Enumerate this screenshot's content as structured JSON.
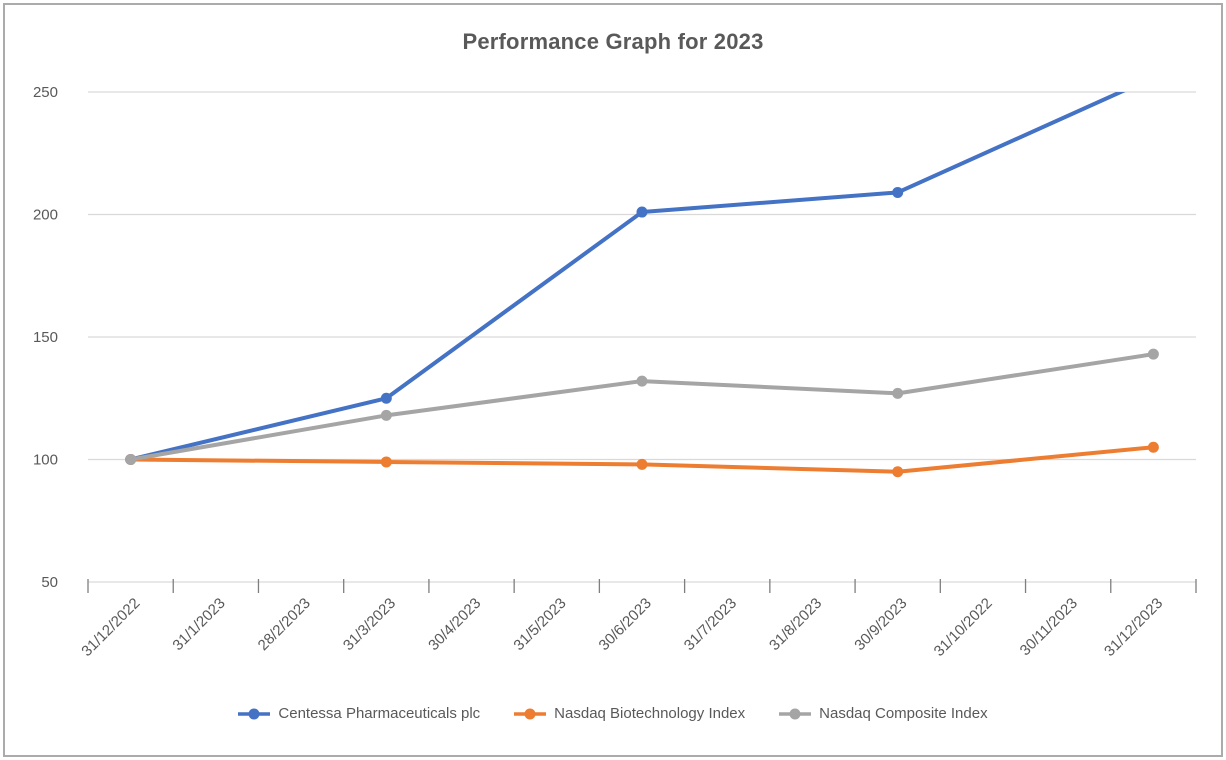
{
  "chart_data": {
    "type": "line",
    "title": "Performance Graph for 2023",
    "x": [
      "31/12/2022",
      "31/1/2023",
      "28/2/2023",
      "31/3/2023",
      "30/4/2023",
      "31/5/2023",
      "30/6/2023",
      "31/7/2023",
      "31/8/2023",
      "30/9/2023",
      "31/10/2022",
      "30/11/2023",
      "31/12/2023"
    ],
    "series": [
      {
        "name": "Centessa Pharmaceuticals plc",
        "color": "#4472C4",
        "values": [
          100,
          null,
          null,
          125,
          null,
          null,
          201,
          null,
          null,
          209,
          null,
          null,
          256
        ]
      },
      {
        "name": "Nasdaq Biotechnology Index",
        "color": "#ED7D31",
        "values": [
          100,
          null,
          null,
          99,
          null,
          null,
          98,
          null,
          null,
          95,
          null,
          null,
          105
        ]
      },
      {
        "name": "Nasdaq Composite Index",
        "color": "#A5A5A5",
        "values": [
          100,
          null,
          null,
          118,
          null,
          null,
          132,
          null,
          null,
          127,
          null,
          null,
          143
        ]
      }
    ],
    "ylim": [
      50,
      250
    ],
    "y_ticks": [
      250,
      200,
      150,
      100,
      50
    ],
    "grid": "horizontal",
    "legend_position": "bottom",
    "clip_series_to_plot": true,
    "xlabel": "",
    "ylabel": "",
    "style": {
      "axis_text_color": "#595959",
      "gridline_color": "#D9D9D9",
      "tick_color": "#7F7F7F",
      "frame_border_color": "#ABABAB",
      "title_color": "#595959",
      "background": "#FFFFFF"
    }
  }
}
